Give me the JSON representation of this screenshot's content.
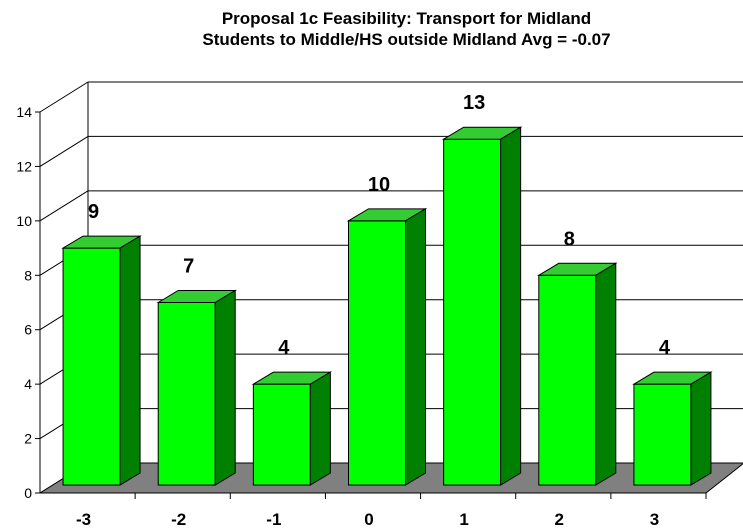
{
  "chart_data": {
    "type": "bar",
    "title_lines": [
      "Proposal 1c Feasibility: Transport for Midland",
      "Students to Middle/HS outside Midland  Avg = -0.07"
    ],
    "categories": [
      "-3",
      "-2",
      "-1",
      "0",
      "1",
      "2",
      "3"
    ],
    "values": [
      9,
      7,
      4,
      10,
      13,
      8,
      4
    ],
    "data_labels": [
      "9",
      "7",
      "4",
      "10",
      "13",
      "8",
      "4"
    ],
    "ylim": [
      0,
      14
    ],
    "yticks": [
      "0",
      "2",
      "4",
      "6",
      "8",
      "10",
      "12",
      "14"
    ],
    "grid": true,
    "three_d": true,
    "colors": {
      "bar_front": "#00ff00",
      "bar_top": "#33cc33",
      "bar_side": "#008000",
      "floor": "#808080"
    }
  }
}
